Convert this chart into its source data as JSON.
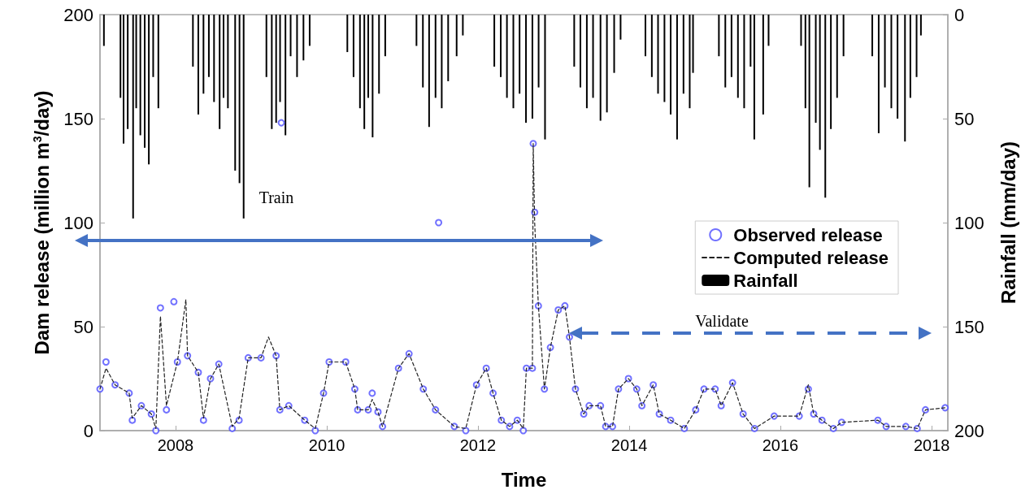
{
  "chart_data": {
    "type": "scatter",
    "xlabel": "Time",
    "ylabel": "Dam release (million m$^{3}$/day)",
    "y2label": "Rainfall (mm/day)",
    "xlim": [
      "2007-01-01",
      "2018-03-20"
    ],
    "xticks": [
      {
        "value": "2008",
        "label": "2008"
      },
      {
        "value": "2010",
        "label": "2010"
      },
      {
        "value": "2012",
        "label": "2012"
      },
      {
        "value": "2014",
        "label": "2014"
      },
      {
        "value": "2016",
        "label": "2016"
      },
      {
        "value": "2018",
        "label": "2018"
      }
    ],
    "ylim": [
      0,
      200
    ],
    "yticks": [
      0,
      50,
      100,
      150,
      200
    ],
    "y2lim": [
      200,
      0
    ],
    "y2ticks": [
      0,
      50,
      100,
      150,
      200
    ],
    "legend": "right",
    "annotations": [
      "Train",
      "Validate"
    ],
    "series": [
      {
        "name": "Observed release",
        "marker": "circle",
        "color": "#4d4dff",
        "x": [
          "2007-01-01",
          "2007-01-30",
          "2007-03-15",
          "2007-05-22",
          "2007-06-06",
          "2007-07-20",
          "2007-09-06",
          "2007-09-28",
          "2007-10-20",
          "2007-11-18",
          "2007-12-24",
          "2008-01-10",
          "2008-02-28",
          "2008-04-20",
          "2008-05-15",
          "2008-06-18",
          "2008-07-28",
          "2008-10-01",
          "2008-11-03",
          "2008-12-17",
          "2009-02-17",
          "2009-05-01",
          "2009-05-19",
          "2009-05-26",
          "2009-07-01",
          "2009-09-16",
          "2009-11-06",
          "2009-12-16",
          "2010-01-12",
          "2010-04-02",
          "2010-05-16",
          "2010-05-30",
          "2010-07-20",
          "2010-08-08",
          "2010-09-05",
          "2010-09-27",
          "2010-12-13",
          "2011-02-02",
          "2011-04-12",
          "2011-06-10",
          "2011-06-25",
          "2011-09-09",
          "2011-11-03",
          "2011-12-25",
          "2012-02-10",
          "2012-03-14",
          "2012-04-23",
          "2012-06-02",
          "2012-07-09",
          "2012-08-07",
          "2012-08-22",
          "2012-09-20",
          "2012-09-24",
          "2012-10-01",
          "2012-10-19",
          "2012-11-17",
          "2012-12-16",
          "2013-01-23",
          "2013-02-24",
          "2013-03-18",
          "2013-04-16",
          "2013-05-26",
          "2013-06-21",
          "2013-08-15",
          "2013-09-09",
          "2013-10-12",
          "2013-11-10",
          "2013-12-28",
          "2014-02-06",
          "2014-03-03",
          "2014-04-27",
          "2014-05-26",
          "2014-07-20",
          "2014-09-24",
          "2014-11-18",
          "2014-12-28",
          "2015-02-20",
          "2015-03-21",
          "2015-05-15",
          "2015-07-05",
          "2015-08-29",
          "2015-12-02",
          "2016-04-01",
          "2016-05-15",
          "2016-06-10",
          "2016-07-20",
          "2016-09-13",
          "2016-10-23",
          "2017-04-16",
          "2017-05-26",
          "2017-08-29",
          "2017-10-23",
          "2017-12-02",
          "2018-03-07"
        ],
        "values": [
          20,
          33,
          22,
          18,
          5,
          12,
          8,
          0,
          59,
          10,
          62,
          33,
          36,
          28,
          5,
          25,
          32,
          1,
          5,
          35,
          35,
          36,
          10,
          148,
          12,
          5,
          0,
          18,
          33,
          33,
          20,
          10,
          10,
          18,
          9,
          2,
          30,
          37,
          20,
          10,
          100,
          2,
          0,
          22,
          30,
          18,
          5,
          2,
          5,
          0,
          30,
          30,
          138,
          105,
          60,
          20,
          40,
          58,
          60,
          45,
          20,
          8,
          12,
          12,
          2,
          2,
          20,
          25,
          20,
          12,
          22,
          8,
          5,
          1,
          10,
          20,
          20,
          12,
          23,
          8,
          1,
          7,
          7,
          20,
          8,
          5,
          1,
          4,
          5,
          2,
          2,
          1,
          10,
          11
        ]
      },
      {
        "name": "Computed release",
        "type": "line",
        "line_style": "dashed",
        "marker": "none",
        "color": "#222222",
        "x": [
          "2007-01-01",
          "2007-01-30",
          "2007-03-15",
          "2007-05-22",
          "2007-06-06",
          "2007-07-20",
          "2007-09-06",
          "2007-09-28",
          "2007-10-20",
          "2007-11-18",
          "2008-01-10",
          "2008-02-20",
          "2008-02-28",
          "2008-04-20",
          "2008-05-15",
          "2008-06-18",
          "2008-07-28",
          "2008-10-01",
          "2008-11-03",
          "2008-12-17",
          "2009-02-17",
          "2009-03-25",
          "2009-05-01",
          "2009-05-19",
          "2009-07-01",
          "2009-09-16",
          "2009-11-06",
          "2009-12-16",
          "2010-01-12",
          "2010-04-02",
          "2010-05-16",
          "2010-05-30",
          "2010-07-20",
          "2010-08-08",
          "2010-09-05",
          "2010-09-27",
          "2010-12-13",
          "2011-02-02",
          "2011-04-12",
          "2011-06-10",
          "2011-09-09",
          "2011-11-03",
          "2011-12-25",
          "2012-02-10",
          "2012-03-14",
          "2012-04-23",
          "2012-06-02",
          "2012-07-09",
          "2012-08-07",
          "2012-08-22",
          "2012-09-20",
          "2012-09-24",
          "2012-10-01",
          "2012-10-19",
          "2012-11-17",
          "2012-12-16",
          "2013-01-23",
          "2013-02-24",
          "2013-03-18",
          "2013-04-16",
          "2013-05-26",
          "2013-06-21",
          "2013-08-15",
          "2013-09-09",
          "2013-10-12",
          "2013-11-10",
          "2013-12-28",
          "2014-02-06",
          "2014-03-03",
          "2014-04-27",
          "2014-05-26",
          "2014-07-20",
          "2014-09-24",
          "2014-11-18",
          "2014-12-28",
          "2015-02-20",
          "2015-03-21",
          "2015-05-15",
          "2015-07-05",
          "2015-08-29",
          "2015-12-02",
          "2016-04-01",
          "2016-05-15",
          "2016-06-10",
          "2016-07-20",
          "2016-09-13",
          "2016-10-23",
          "2017-04-16",
          "2017-05-26",
          "2017-08-29",
          "2017-10-23",
          "2017-12-02",
          "2018-03-07"
        ],
        "values": [
          20,
          30,
          22,
          18,
          6,
          12,
          8,
          1,
          55,
          12,
          33,
          63,
          36,
          28,
          6,
          25,
          32,
          2,
          6,
          35,
          35,
          45,
          36,
          10,
          12,
          5,
          1,
          18,
          33,
          33,
          20,
          10,
          10,
          15,
          9,
          2,
          30,
          37,
          20,
          10,
          2,
          1,
          22,
          30,
          18,
          5,
          2,
          5,
          1,
          30,
          30,
          138,
          100,
          60,
          20,
          40,
          58,
          60,
          45,
          20,
          8,
          12,
          12,
          2,
          2,
          20,
          25,
          20,
          12,
          22,
          8,
          5,
          1,
          10,
          20,
          20,
          12,
          23,
          8,
          1,
          7,
          7,
          22,
          8,
          5,
          1,
          4,
          5,
          2,
          2,
          1,
          10,
          11
        ]
      },
      {
        "name": "Rainfall",
        "type": "bar",
        "axis": "y2",
        "color": "#000000",
        "x": [
          "2007-01-20",
          "2007-04-10",
          "2007-04-25",
          "2007-05-15",
          "2007-06-10",
          "2007-06-25",
          "2007-07-15",
          "2007-08-05",
          "2007-08-25",
          "2007-09-15",
          "2007-10-10",
          "2008-03-25",
          "2008-04-20",
          "2008-05-15",
          "2008-06-10",
          "2008-07-05",
          "2008-08-01",
          "2008-08-20",
          "2008-09-10",
          "2008-10-15",
          "2008-11-05",
          "2008-11-25",
          "2009-03-15",
          "2009-04-10",
          "2009-05-01",
          "2009-05-20",
          "2009-06-15",
          "2009-07-10",
          "2009-08-10",
          "2009-09-10",
          "2009-10-10",
          "2010-04-10",
          "2010-05-10",
          "2010-06-10",
          "2010-07-01",
          "2010-07-20",
          "2010-08-10",
          "2010-09-10",
          "2010-10-10",
          "2011-03-10",
          "2011-04-10",
          "2011-05-10",
          "2011-06-10",
          "2011-07-10",
          "2011-08-10",
          "2011-09-20",
          "2011-10-20",
          "2012-03-20",
          "2012-04-20",
          "2012-05-20",
          "2012-06-20",
          "2012-07-20",
          "2012-08-20",
          "2012-09-20",
          "2012-10-20",
          "2012-11-20",
          "2013-04-10",
          "2013-05-10",
          "2013-06-10",
          "2013-07-10",
          "2013-08-15",
          "2013-09-15",
          "2013-10-20",
          "2013-11-20",
          "2014-03-20",
          "2014-04-20",
          "2014-05-20",
          "2014-06-20",
          "2014-07-20",
          "2014-08-20",
          "2014-09-20",
          "2014-10-20",
          "2014-11-05",
          "2015-03-10",
          "2015-04-10",
          "2015-05-10",
          "2015-06-10",
          "2015-07-10",
          "2015-08-10",
          "2015-08-28",
          "2015-10-10",
          "2015-11-05",
          "2016-04-10",
          "2016-05-01",
          "2016-05-20",
          "2016-06-20",
          "2016-07-10",
          "2016-08-05",
          "2016-09-01",
          "2016-10-01",
          "2016-11-01",
          "2017-03-20",
          "2017-04-20",
          "2017-05-20",
          "2017-06-20",
          "2017-07-20",
          "2017-08-25",
          "2017-09-20",
          "2017-10-20",
          "2017-11-10"
        ],
        "values": [
          15,
          40,
          62,
          55,
          98,
          45,
          58,
          64,
          72,
          30,
          45,
          25,
          48,
          38,
          30,
          42,
          55,
          40,
          45,
          75,
          81,
          98,
          30,
          55,
          52,
          42,
          58,
          20,
          30,
          22,
          15,
          18,
          30,
          45,
          55,
          40,
          59,
          38,
          20,
          15,
          35,
          54,
          40,
          45,
          32,
          20,
          10,
          25,
          30,
          40,
          45,
          38,
          52,
          50,
          35,
          60,
          25,
          35,
          45,
          40,
          51,
          47,
          28,
          12,
          20,
          30,
          38,
          42,
          48,
          60,
          38,
          45,
          28,
          20,
          35,
          30,
          40,
          45,
          25,
          60,
          48,
          15,
          15,
          45,
          83,
          52,
          65,
          88,
          55,
          40,
          20,
          20,
          57,
          35,
          45,
          50,
          61,
          40,
          30,
          10
        ]
      }
    ]
  }
}
